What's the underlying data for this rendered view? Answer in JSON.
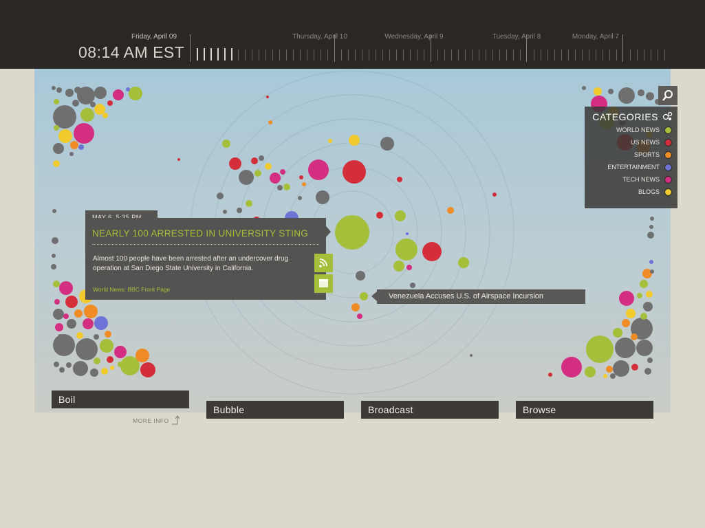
{
  "header": {
    "date": "Friday, April 09",
    "time": "08:14 AM EST",
    "timeline_days": [
      "Thursday, April 10",
      "Wednesday, April 9",
      "Tuesday, April 8",
      "Monday, April 7"
    ]
  },
  "categories": {
    "title": "CATEGORIES",
    "items": [
      {
        "label": "WORLD NEWS",
        "color": "#a6bf3a"
      },
      {
        "label": "US NEWS",
        "color": "#d42e3a"
      },
      {
        "label": "SPORTS",
        "color": "#ef8c25"
      },
      {
        "label": "ENTERTAINMENT",
        "color": "#6e73d8"
      },
      {
        "label": "TECH NEWS",
        "color": "#d42e83"
      },
      {
        "label": "BLOGS",
        "color": "#f1cb2d"
      }
    ]
  },
  "story": {
    "date": "MAY 6, 5:35 PM",
    "headline": "NEARLY 100 ARRESTED IN UNIVERSITY STING",
    "body": "Almost 100 people have been arrested after an undercover drug operation at San Diego State University in California.",
    "source": "World News: BBC Front Page",
    "actions": [
      "rss-icon",
      "bookmark-icon"
    ]
  },
  "hover_headline": "Venezuela Accuses U.S. of Airspace Incursion",
  "nav": {
    "items": [
      "Boil",
      "Bubble",
      "Broadcast",
      "Browse"
    ],
    "more_info": "MORE INFO"
  },
  "colors": {
    "gray": "#6f6f6f",
    "accent_green": "#a6bf3a"
  }
}
